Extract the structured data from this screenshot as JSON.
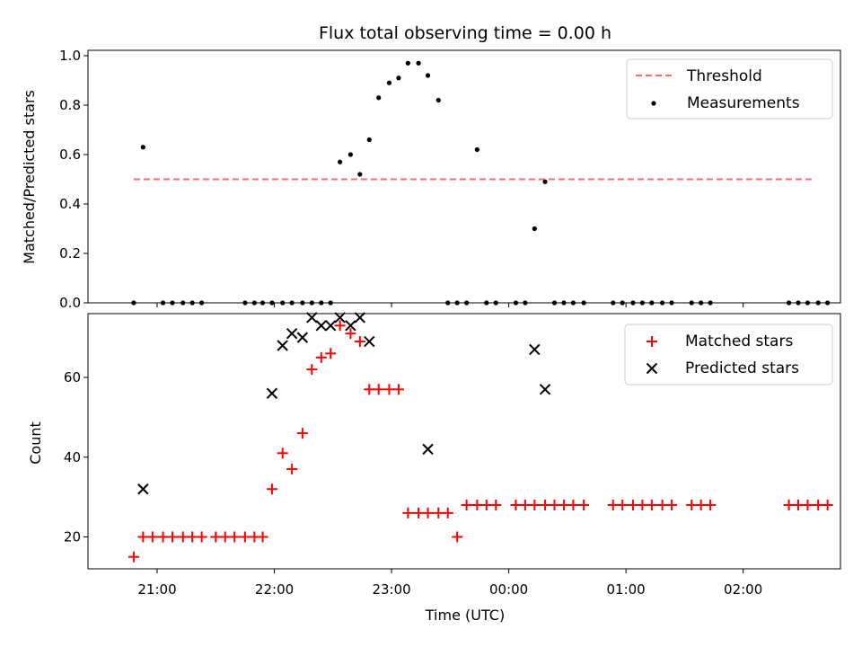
{
  "title": "Flux total observing time = 0.00 h",
  "colors": {
    "threshold": "#ff6b6b",
    "measurement": "#000000",
    "matched": "#ff0000",
    "predicted": "#000000"
  },
  "chart_data": [
    {
      "type": "scatter",
      "ylabel": "Matched/Predicted stars",
      "xlim": [
        -0.09,
        6.33
      ],
      "ylim": [
        0,
        1.0
      ],
      "yticks": [
        0.0,
        0.2,
        0.4,
        0.6,
        0.8,
        1.0
      ],
      "ytick_labels": [
        "0.0",
        "0.2",
        "0.4",
        "0.6",
        "0.8",
        "1.0"
      ],
      "legend_position": "upper right",
      "grid": false,
      "threshold": {
        "name": "Threshold",
        "value": 0.5,
        "x_range": [
          0.3,
          6.1
        ]
      },
      "series": [
        {
          "name": "Measurements",
          "x": [
            0.3,
            0.38,
            0.55,
            0.63,
            0.72,
            0.8,
            0.88,
            1.25,
            1.33,
            1.4,
            1.48,
            1.57,
            1.65,
            1.74,
            1.82,
            1.9,
            1.98,
            2.06,
            2.15,
            2.23,
            2.31,
            2.39,
            2.48,
            2.56,
            2.64,
            2.73,
            2.81,
            2.9,
            2.98,
            3.06,
            3.14,
            3.23,
            3.31,
            3.39,
            3.56,
            3.64,
            3.72,
            3.81,
            3.89,
            3.97,
            4.05,
            4.14,
            4.39,
            4.47,
            4.56,
            4.64,
            4.72,
            4.81,
            4.89,
            5.06,
            5.14,
            5.22,
            5.89,
            5.97,
            6.05,
            6.14,
            6.22
          ],
          "y": [
            0.0,
            0.63,
            0.0,
            0.0,
            0.0,
            0.0,
            0.0,
            0.0,
            0.0,
            0.0,
            0.0,
            0.0,
            0.0,
            0.0,
            0.0,
            0.0,
            0.0,
            0.57,
            0.6,
            0.52,
            0.66,
            0.83,
            0.89,
            0.91,
            0.97,
            0.97,
            0.92,
            0.82,
            0.0,
            0.0,
            0.0,
            0.62,
            0.0,
            0.0,
            0.0,
            0.0,
            0.3,
            0.49,
            0.0,
            0.0,
            0.0,
            0.0,
            0.0,
            0.0,
            0.0,
            0.0,
            0.0,
            0.0,
            0.0,
            0.0,
            0.0,
            0.0,
            0.0,
            0.0,
            0.0,
            0.0,
            0.0
          ]
        }
      ]
    },
    {
      "type": "scatter",
      "xlabel": "Time (UTC)",
      "ylabel": "Count",
      "xlim": [
        -0.09,
        6.33
      ],
      "ylim": [
        12,
        76
      ],
      "yticks": [
        20,
        40,
        60
      ],
      "ytick_labels": [
        "20",
        "40",
        "60"
      ],
      "x_ticks": [
        0.5,
        1.5,
        2.5,
        3.5,
        4.5,
        5.5
      ],
      "x_tick_labels": [
        "21:00",
        "22:00",
        "23:00",
        "00:00",
        "01:00",
        "02:00"
      ],
      "legend_position": "upper right",
      "grid": false,
      "series": [
        {
          "name": "Matched stars",
          "x": [
            0.3,
            0.38,
            0.46,
            0.55,
            0.63,
            0.72,
            0.8,
            0.88,
            1.0,
            1.08,
            1.16,
            1.25,
            1.33,
            1.4,
            1.48,
            1.57,
            1.65,
            1.74,
            1.82,
            1.9,
            1.98,
            2.06,
            2.15,
            2.23,
            2.31,
            2.39,
            2.48,
            2.56,
            2.64,
            2.73,
            2.81,
            2.9,
            2.98,
            3.06,
            3.14,
            3.23,
            3.31,
            3.39,
            3.56,
            3.64,
            3.72,
            3.81,
            3.89,
            3.97,
            4.05,
            4.14,
            4.39,
            4.47,
            4.56,
            4.64,
            4.72,
            4.81,
            4.89,
            5.06,
            5.14,
            5.22,
            5.89,
            5.97,
            6.05,
            6.14,
            6.22
          ],
          "y": [
            15,
            20,
            20,
            20,
            20,
            20,
            20,
            20,
            20,
            20,
            20,
            20,
            20,
            20,
            32,
            41,
            37,
            46,
            62,
            65,
            66,
            73,
            71,
            69,
            57,
            57,
            57,
            57,
            26,
            26,
            26,
            26,
            26,
            20,
            28,
            28,
            28,
            28,
            28,
            28,
            28,
            28,
            28,
            28,
            28,
            28,
            28,
            28,
            28,
            28,
            28,
            28,
            28,
            28,
            28,
            28,
            28,
            28,
            28,
            28,
            28
          ]
        },
        {
          "name": "Predicted stars",
          "x": [
            0.38,
            1.48,
            1.57,
            1.65,
            1.74,
            1.82,
            1.9,
            1.98,
            2.06,
            2.15,
            2.23,
            2.31,
            2.81,
            3.72,
            3.81
          ],
          "y": [
            32,
            56,
            68,
            71,
            70,
            75,
            73,
            73,
            75,
            73,
            75,
            69,
            42,
            67,
            57
          ]
        }
      ]
    }
  ]
}
